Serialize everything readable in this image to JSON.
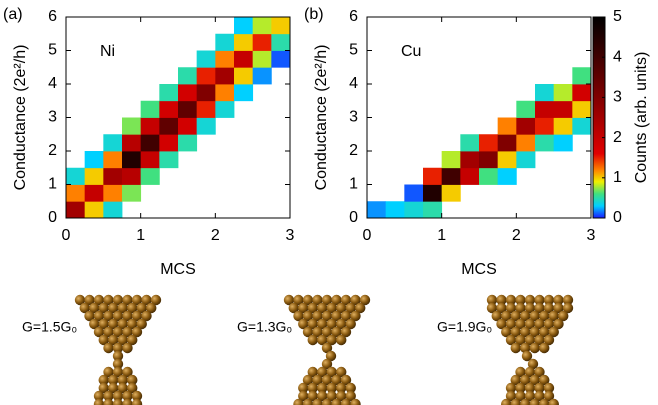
{
  "chart_data": [
    {
      "type": "heatmap",
      "panel_label": "(a)",
      "label": "Ni",
      "xlabel": "MCS",
      "ylabel": "Conductance (2e²/h)",
      "xlim": [
        0,
        3
      ],
      "xticks": [
        0,
        1,
        2,
        3
      ],
      "ylim": [
        0,
        6
      ],
      "yticks": [
        0,
        1,
        2,
        3,
        4,
        5,
        6
      ],
      "xbins": [
        0,
        0.25,
        0.5,
        0.75,
        1,
        1.25,
        1.5,
        1.75,
        2,
        2.25,
        2.5,
        2.75,
        3
      ],
      "ybins": [
        0,
        0.5,
        1,
        1.5,
        2,
        2.5,
        3,
        3.5,
        4,
        4.5,
        5,
        5.5,
        6
      ],
      "zlim": [
        0,
        5
      ],
      "colorscale": [
        [
          0,
          "#1a1aff"
        ],
        [
          0.3,
          "#00d0ff"
        ],
        [
          0.6,
          "#40e080"
        ],
        [
          0.9,
          "#f0f000"
        ],
        [
          1.2,
          "#ff8000"
        ],
        [
          1.6,
          "#e00000"
        ],
        [
          3,
          "#800000"
        ],
        [
          5,
          "#000000"
        ]
      ],
      "z": [
        [
          2.5,
          1,
          0.4,
          null,
          null,
          null,
          null,
          null,
          null,
          null,
          null,
          null
        ],
        [
          1.2,
          2,
          1.2,
          0.7,
          null,
          null,
          null,
          null,
          null,
          null,
          null,
          null
        ],
        [
          0.4,
          1,
          2.5,
          2.2,
          0.6,
          null,
          null,
          null,
          null,
          null,
          null,
          null
        ],
        [
          null,
          0.3,
          1.2,
          4.5,
          2,
          0.5,
          null,
          null,
          null,
          null,
          null,
          null
        ],
        [
          null,
          null,
          0.4,
          2.2,
          4,
          1.8,
          0.5,
          null,
          null,
          null,
          null,
          null
        ],
        [
          null,
          null,
          null,
          0.7,
          2,
          3.5,
          1.8,
          0.4,
          null,
          null,
          null,
          null
        ],
        [
          null,
          null,
          null,
          null,
          0.6,
          1.8,
          3.5,
          1.5,
          0.4,
          null,
          null,
          null
        ],
        [
          null,
          null,
          null,
          null,
          null,
          0.5,
          1.8,
          3,
          1.2,
          0.3,
          null,
          null
        ],
        [
          null,
          null,
          null,
          null,
          null,
          null,
          0.5,
          1.5,
          2.5,
          1,
          0.2,
          null
        ],
        [
          null,
          null,
          null,
          null,
          null,
          null,
          null,
          0.4,
          1.2,
          2,
          0.8,
          0.1
        ],
        [
          null,
          null,
          null,
          null,
          null,
          null,
          null,
          null,
          0.4,
          1,
          1.5,
          0.5
        ],
        [
          null,
          null,
          null,
          null,
          null,
          null,
          null,
          null,
          null,
          0.3,
          0.8,
          1
        ]
      ]
    },
    {
      "type": "heatmap",
      "panel_label": "(b)",
      "label": "Cu",
      "xlabel": "MCS",
      "ylabel": "Conductance (2e²/h)",
      "xlim": [
        0,
        3
      ],
      "xticks": [
        0,
        1,
        2,
        3
      ],
      "ylim": [
        0,
        6
      ],
      "yticks": [
        0,
        1,
        2,
        3,
        4,
        5,
        6
      ],
      "xbins": [
        0,
        0.25,
        0.5,
        0.75,
        1,
        1.25,
        1.5,
        1.75,
        2,
        2.25,
        2.5,
        2.75,
        3
      ],
      "ybins": [
        0,
        0.5,
        1,
        1.5,
        2,
        2.5,
        3,
        3.5,
        4,
        4.5,
        5,
        5.5,
        6
      ],
      "zlim": [
        0,
        5
      ],
      "zticks": [
        0,
        1,
        2,
        3,
        4,
        5
      ],
      "colorbar_label": "Counts (arb. units)",
      "colorscale": [
        [
          0,
          "#1a1aff"
        ],
        [
          0.3,
          "#00d0ff"
        ],
        [
          0.6,
          "#40e080"
        ],
        [
          0.9,
          "#f0f000"
        ],
        [
          1.2,
          "#ff8000"
        ],
        [
          1.6,
          "#e00000"
        ],
        [
          3,
          "#800000"
        ],
        [
          5,
          "#000000"
        ]
      ],
      "z": [
        [
          0.2,
          0.3,
          0.4,
          0.5,
          null,
          null,
          null,
          null,
          null,
          null,
          null,
          null
        ],
        [
          null,
          null,
          0.1,
          4.5,
          1,
          null,
          null,
          null,
          null,
          null,
          null,
          null
        ],
        [
          null,
          null,
          null,
          1.5,
          4,
          2,
          0.6,
          0.3,
          null,
          null,
          null,
          null
        ],
        [
          null,
          null,
          null,
          null,
          0.8,
          2.5,
          3,
          1,
          0.4,
          null,
          null,
          null
        ],
        [
          null,
          null,
          null,
          null,
          null,
          0.5,
          1.5,
          3,
          1.2,
          0.5,
          0.3,
          null
        ],
        [
          null,
          null,
          null,
          null,
          null,
          null,
          null,
          1.2,
          2.5,
          1.5,
          1,
          0.4
        ],
        [
          null,
          null,
          null,
          null,
          null,
          null,
          null,
          null,
          0.6,
          2,
          2,
          1
        ],
        [
          null,
          null,
          null,
          null,
          null,
          null,
          null,
          null,
          null,
          0.4,
          0.8,
          1.8
        ],
        [
          null,
          null,
          null,
          null,
          null,
          null,
          null,
          null,
          null,
          null,
          null,
          0.6
        ],
        [
          null,
          null,
          null,
          null,
          null,
          null,
          null,
          null,
          null,
          null,
          null,
          null
        ],
        [
          null,
          null,
          null,
          null,
          null,
          null,
          null,
          null,
          null,
          null,
          null,
          null
        ],
        [
          null,
          null,
          null,
          null,
          null,
          null,
          null,
          null,
          null,
          null,
          null,
          null
        ]
      ]
    }
  ],
  "structures": [
    {
      "label": "G=1.5G₀"
    },
    {
      "label": "G=1.3G₀"
    },
    {
      "label": "G=1.9G₀"
    }
  ]
}
